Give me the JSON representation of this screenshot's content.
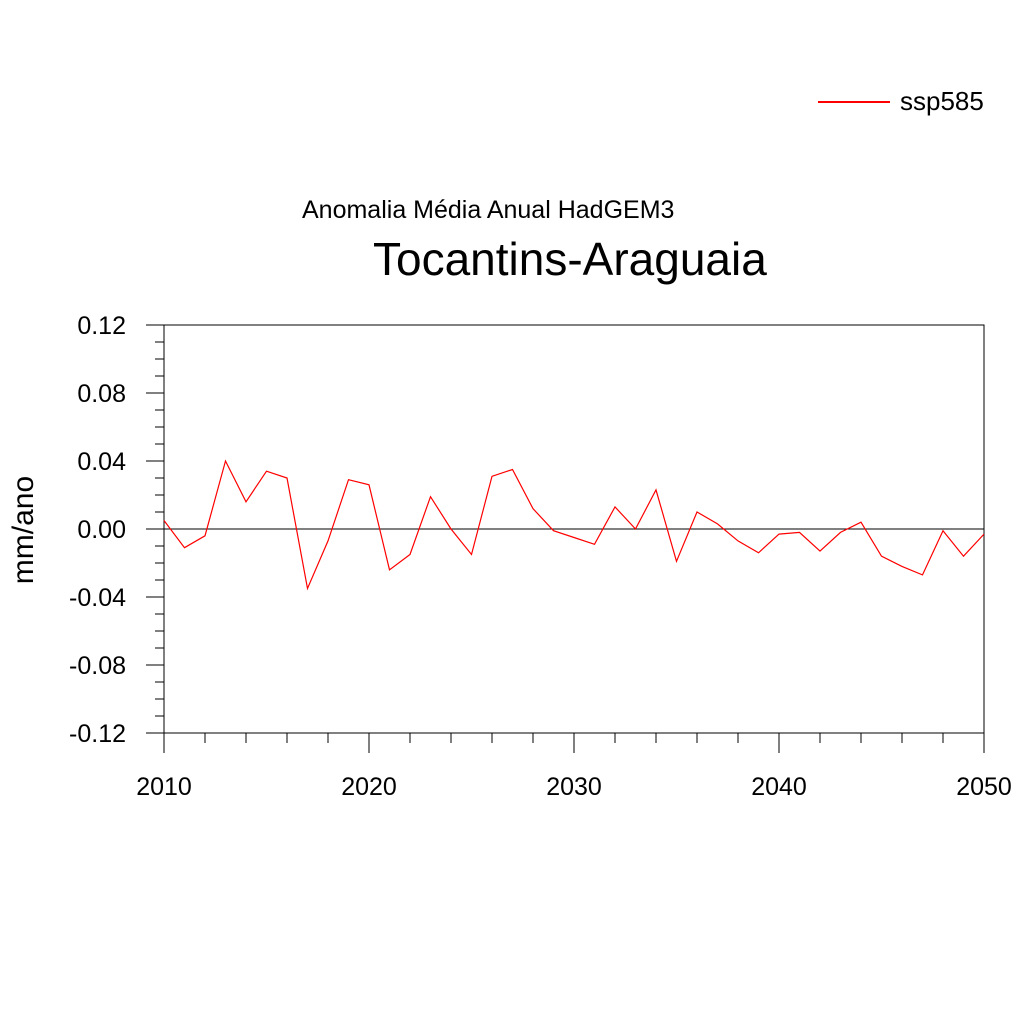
{
  "chart_data": {
    "type": "line",
    "subtitle": "Anomalia Média Anual HadGEM3",
    "title": "Tocantins-Araguaia",
    "xlabel": "",
    "ylabel": "mm/ano",
    "xlim": [
      2010,
      2050
    ],
    "ylim": [
      -0.12,
      0.12
    ],
    "x_ticks": [
      "2010",
      "2020",
      "2030",
      "2040",
      "2050"
    ],
    "y_ticks": [
      "0.12",
      "0.08",
      "0.04",
      "0.00",
      "-0.04",
      "-0.08",
      "-0.12"
    ],
    "legend_position": "top-right",
    "zero_line": true,
    "series": [
      {
        "name": "ssp585",
        "color": "#ff0000",
        "x": [
          2010,
          2011,
          2012,
          2013,
          2014,
          2015,
          2016,
          2017,
          2018,
          2019,
          2020,
          2021,
          2022,
          2023,
          2024,
          2025,
          2026,
          2027,
          2028,
          2029,
          2030,
          2031,
          2032,
          2033,
          2034,
          2035,
          2036,
          2037,
          2038,
          2039,
          2040,
          2041,
          2042,
          2043,
          2044,
          2045,
          2046,
          2047,
          2048,
          2049,
          2050
        ],
        "y": [
          0.005,
          -0.011,
          -0.004,
          0.04,
          0.016,
          0.034,
          0.03,
          -0.035,
          -0.007,
          0.029,
          0.026,
          -0.024,
          -0.015,
          0.019,
          0.0,
          -0.015,
          0.031,
          0.035,
          0.012,
          -0.001,
          -0.005,
          -0.009,
          0.013,
          0.0,
          0.023,
          -0.019,
          0.01,
          0.003,
          -0.007,
          -0.014,
          -0.003,
          -0.002,
          -0.013,
          -0.002,
          0.004,
          -0.016,
          -0.022,
          -0.027,
          -0.001,
          -0.016,
          -0.003
        ]
      }
    ]
  }
}
